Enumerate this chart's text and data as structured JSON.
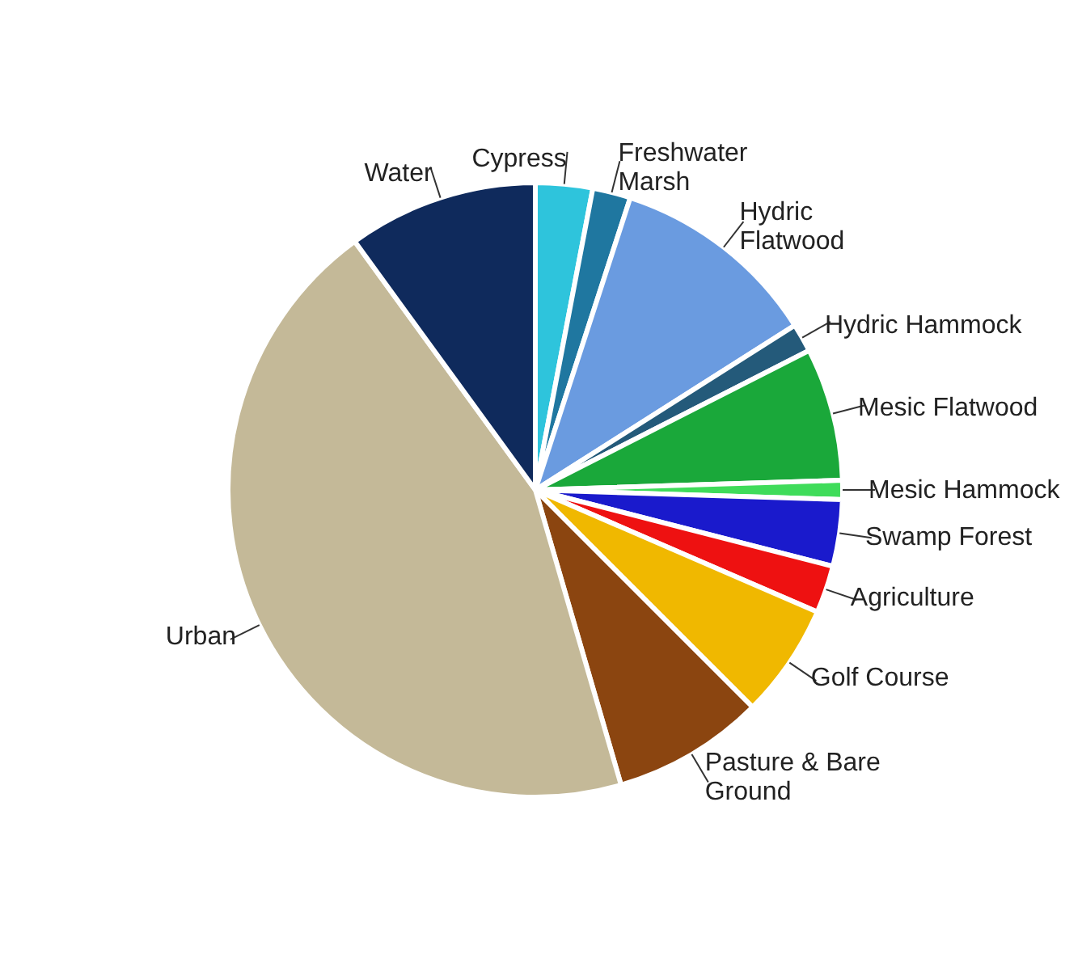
{
  "chart_data": {
    "type": "pie",
    "categories": [
      "Cypress",
      "Freshwater Marsh",
      "Hydric Flatwood",
      "Hydric Hammock",
      "Mesic Flatwood",
      "Mesic Hammock",
      "Swamp Forest",
      "Agriculture",
      "Golf Course",
      "Pasture & Bare Ground",
      "Urban",
      "Water"
    ],
    "values": [
      3,
      2,
      11,
      1.5,
      7,
      1,
      3.5,
      2.5,
      6,
      8,
      44.5,
      10
    ],
    "colors": [
      "#2ec4dc",
      "#1f77a0",
      "#6a9be0",
      "#245a7a",
      "#1aa83a",
      "#3fdc5a",
      "#1a1acc",
      "#ee1111",
      "#f0b800",
      "#8b4510",
      "#c4b998",
      "#0f2a5c"
    ],
    "legend": false
  }
}
